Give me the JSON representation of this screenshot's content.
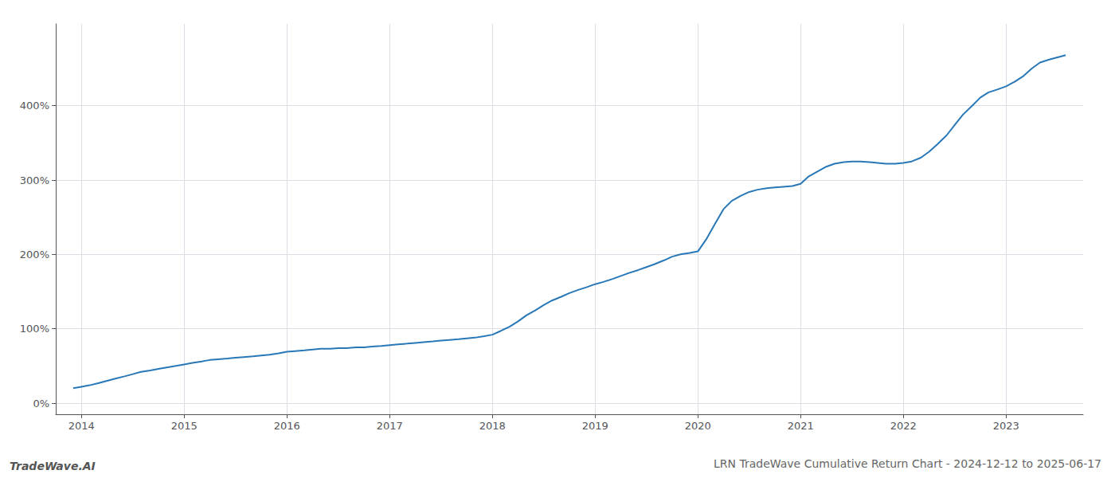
{
  "chart_data": {
    "type": "line",
    "title": "LRN TradeWave Cumulative Return Chart - 2024-12-12 to 2025-06-17",
    "annotations": [
      "TradeWave.AI"
    ],
    "color": "#2878b8",
    "x": [
      2013.92,
      2014.0,
      2014.08,
      2014.17,
      2014.25,
      2014.33,
      2014.42,
      2014.5,
      2014.58,
      2014.67,
      2014.75,
      2014.83,
      2014.92,
      2015.0,
      2015.08,
      2015.17,
      2015.25,
      2015.33,
      2015.42,
      2015.5,
      2015.58,
      2015.67,
      2015.75,
      2015.83,
      2015.92,
      2016.0,
      2016.08,
      2016.17,
      2016.25,
      2016.33,
      2016.42,
      2016.5,
      2016.58,
      2016.67,
      2016.75,
      2016.83,
      2016.92,
      2017.0,
      2017.08,
      2017.17,
      2017.25,
      2017.33,
      2017.42,
      2017.5,
      2017.58,
      2017.67,
      2017.75,
      2017.83,
      2017.92,
      2018.0,
      2018.08,
      2018.17,
      2018.25,
      2018.33,
      2018.42,
      2018.5,
      2018.58,
      2018.67,
      2018.75,
      2018.83,
      2018.92,
      2019.0,
      2019.08,
      2019.17,
      2019.25,
      2019.33,
      2019.42,
      2019.5,
      2019.58,
      2019.67,
      2019.75,
      2019.83,
      2019.92,
      2020.0,
      2020.08,
      2020.17,
      2020.25,
      2020.33,
      2020.42,
      2020.5,
      2020.58,
      2020.67,
      2020.75,
      2020.83,
      2020.92,
      2021.0,
      2021.08,
      2021.17,
      2021.25,
      2021.33,
      2021.42,
      2021.5,
      2021.58,
      2021.67,
      2021.75,
      2021.83,
      2021.92,
      2022.0,
      2022.08,
      2022.17,
      2022.25,
      2022.33,
      2022.42,
      2022.5,
      2022.58,
      2022.67,
      2022.75,
      2022.83,
      2022.92,
      2023.0,
      2023.08,
      2023.17,
      2023.25,
      2023.33,
      2023.42,
      2023.5,
      2023.58
    ],
    "values": [
      20,
      22,
      24,
      27,
      30,
      33,
      36,
      39,
      42,
      44,
      46,
      48,
      50,
      52,
      54,
      56,
      58,
      59,
      60,
      61,
      62,
      63,
      64,
      65,
      67,
      69,
      70,
      71,
      72,
      73,
      73,
      74,
      74,
      75,
      75,
      76,
      77,
      78,
      79,
      80,
      81,
      82,
      83,
      84,
      85,
      86,
      87,
      88,
      90,
      92,
      97,
      103,
      110,
      118,
      125,
      132,
      138,
      143,
      148,
      152,
      156,
      160,
      163,
      167,
      171,
      175,
      179,
      183,
      187,
      192,
      197,
      200,
      202,
      204,
      220,
      242,
      261,
      272,
      279,
      284,
      287,
      289,
      290,
      291,
      292,
      295,
      305,
      312,
      318,
      322,
      324,
      325,
      325,
      324,
      323,
      322,
      322,
      323,
      325,
      330,
      338,
      348,
      360,
      374,
      388,
      400,
      411,
      418,
      422,
      426,
      432,
      440,
      450,
      458,
      462,
      465,
      468
    ],
    "xlim": [
      2013.75,
      2023.75
    ],
    "xticks": [
      2014,
      2015,
      2016,
      2017,
      2018,
      2019,
      2020,
      2021,
      2022,
      2023
    ],
    "ylim": [
      -15,
      510
    ],
    "yticks": [
      {
        "value": 0,
        "label": "0%"
      },
      {
        "value": 100,
        "label": "100%"
      },
      {
        "value": 200,
        "label": "200%"
      },
      {
        "value": 300,
        "label": "300%"
      },
      {
        "value": 400,
        "label": "400%"
      }
    ],
    "grid": true
  }
}
